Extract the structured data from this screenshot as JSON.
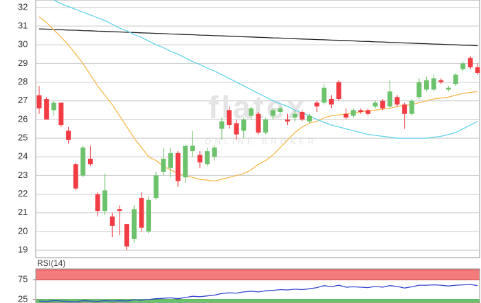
{
  "chart_data": [
    {
      "type": "candlestick",
      "watermark": "flatex",
      "watermark_subtitle": "ONLINE BROKER",
      "ylim": [
        18.6,
        32.4
      ],
      "yticks": [
        19,
        20,
        21,
        22,
        23,
        24,
        25,
        26,
        27,
        28,
        29,
        30,
        31,
        32
      ],
      "grid": true,
      "up_color": "#6cc36c",
      "down_color": "#f23c44",
      "open": [
        27.3,
        27.1,
        26.5,
        26.9,
        25.4,
        23.6,
        23.0,
        23.9,
        22.0,
        21.1,
        20.8,
        21.2,
        20.4,
        19.6,
        21.8,
        20.0,
        21.8,
        23.2,
        23.4,
        24.2,
        22.9,
        24.3,
        24.1,
        23.6,
        24.0,
        25.5,
        26.5,
        25.8,
        25.4,
        26.2,
        26.3,
        25.3,
        26.2,
        26.4,
        26.0,
        26.1,
        26.4,
        25.9,
        26.9,
        26.9,
        27.1,
        28.0,
        26.3,
        26.2,
        26.5,
        26.5,
        26.7,
        27.0,
        26.7,
        27.2,
        26.8,
        26.3,
        27.2,
        27.6,
        27.6,
        28.1,
        27.6,
        27.9,
        28.7,
        29.3,
        28.8
      ],
      "high": [
        27.8,
        27.2,
        27.0,
        26.9,
        25.6,
        23.7,
        24.6,
        24.6,
        22.1,
        23.1,
        21.0,
        21.4,
        20.4,
        21.4,
        22.1,
        21.9,
        23.2,
        24.5,
        24.5,
        24.3,
        24.6,
        25.4,
        24.3,
        24.5,
        24.6,
        26.1,
        26.7,
        26.0,
        26.1,
        26.7,
        26.4,
        26.1,
        26.6,
        26.7,
        26.3,
        26.5,
        26.5,
        26.3,
        27.0,
        27.9,
        27.3,
        28.1,
        26.6,
        26.6,
        26.6,
        26.6,
        27.0,
        27.1,
        28.1,
        27.3,
        26.9,
        27.1,
        28.2,
        28.3,
        28.4,
        28.2,
        27.8,
        28.5,
        29.1,
        29.4,
        29.0
      ],
      "low": [
        26.3,
        26.0,
        26.2,
        25.6,
        24.7,
        22.2,
        22.9,
        23.5,
        20.8,
        20.9,
        19.7,
        19.8,
        19.0,
        19.4,
        20.0,
        19.9,
        21.7,
        23.0,
        22.9,
        22.4,
        22.6,
        24.0,
        23.4,
        23.5,
        23.8,
        24.9,
        25.5,
        24.9,
        25.0,
        26.0,
        25.2,
        25.2,
        26.0,
        26.3,
        25.7,
        25.9,
        25.9,
        25.8,
        26.4,
        26.8,
        26.6,
        27.0,
        26.0,
        26.1,
        26.3,
        26.2,
        26.6,
        26.5,
        26.6,
        26.7,
        25.5,
        26.2,
        27.1,
        27.5,
        27.5,
        27.9,
        27.5,
        27.8,
        28.6,
        28.7,
        28.4
      ],
      "close": [
        26.6,
        26.0,
        26.9,
        25.7,
        24.9,
        22.3,
        24.5,
        23.6,
        21.1,
        22.2,
        20.3,
        21.1,
        19.2,
        21.2,
        20.2,
        21.7,
        23.0,
        23.9,
        24.2,
        22.7,
        24.6,
        24.6,
        23.7,
        24.3,
        24.5,
        25.9,
        25.7,
        25.2,
        26.0,
        26.6,
        25.3,
        26.0,
        26.5,
        26.6,
        25.9,
        26.3,
        26.0,
        26.2,
        26.7,
        27.7,
        26.8,
        27.1,
        26.1,
        26.5,
        26.4,
        26.3,
        26.9,
        26.6,
        27.5,
        26.8,
        26.3,
        27.0,
        28.0,
        28.1,
        28.2,
        28.0,
        27.7,
        28.4,
        29.0,
        28.8,
        28.5
      ],
      "series": [
        {
          "color": "#222222",
          "values": [
            30.85,
            30.84,
            30.82,
            30.81,
            30.79,
            30.78,
            30.76,
            30.75,
            30.73,
            30.72,
            30.7,
            30.69,
            30.67,
            30.66,
            30.64,
            30.63,
            30.61,
            30.6,
            30.58,
            30.57,
            30.55,
            30.54,
            30.52,
            30.51,
            30.49,
            30.48,
            30.46,
            30.45,
            30.43,
            30.42,
            30.4,
            30.39,
            30.37,
            30.36,
            30.34,
            30.33,
            30.31,
            30.3,
            30.28,
            30.27,
            30.25,
            30.24,
            30.22,
            30.21,
            30.19,
            30.18,
            30.16,
            30.15,
            30.13,
            30.12,
            30.1,
            30.09,
            30.07,
            30.06,
            30.04,
            30.03,
            30.01,
            30.0,
            29.98,
            29.97,
            29.95
          ]
        },
        {
          "color": "#f6b84a",
          "values": [
            31.5,
            31.2,
            30.8,
            30.4,
            30.0,
            29.5,
            29.0,
            28.4,
            27.8,
            27.3,
            26.8,
            26.2,
            25.6,
            25.0,
            24.5,
            24.0,
            23.8,
            23.5,
            23.3,
            23.1,
            23.0,
            22.9,
            22.8,
            22.75,
            22.7,
            22.8,
            22.9,
            23.0,
            23.1,
            23.3,
            23.6,
            23.8,
            24.1,
            24.5,
            24.9,
            25.3,
            25.6,
            25.8,
            25.9,
            26.1,
            26.2,
            26.25,
            26.3,
            26.35,
            26.4,
            26.45,
            26.5,
            26.55,
            26.6,
            26.7,
            26.75,
            26.8,
            26.9,
            27.0,
            27.1,
            27.15,
            27.2,
            27.3,
            27.4,
            27.45,
            27.5
          ]
        },
        {
          "color": "#5fd3ea",
          "values": [
            null,
            null,
            32.4,
            32.2,
            32.05,
            31.9,
            31.75,
            31.6,
            31.45,
            31.3,
            31.1,
            30.9,
            30.75,
            30.55,
            30.4,
            30.2,
            30.0,
            29.85,
            29.65,
            29.5,
            29.3,
            29.1,
            28.95,
            28.75,
            28.6,
            28.4,
            28.2,
            28.0,
            27.8,
            27.6,
            27.4,
            27.2,
            27.0,
            26.85,
            26.7,
            26.5,
            26.35,
            26.2,
            26.0,
            25.85,
            25.7,
            25.6,
            25.5,
            25.4,
            25.3,
            25.2,
            25.15,
            25.1,
            25.05,
            25.0,
            25.0,
            25.0,
            25.0,
            25.0,
            25.05,
            25.1,
            25.2,
            25.3,
            25.5,
            25.7,
            25.9
          ]
        }
      ]
    },
    {
      "type": "line",
      "title": "RSI(14)",
      "ylim": [
        16,
        103
      ],
      "yticks": [
        25,
        75
      ],
      "overbought_zone": [
        75,
        100
      ],
      "oversold_zone": [
        0,
        25
      ],
      "overbought_color": "#f47c7c",
      "oversold_color": "#6cc46c",
      "series": [
        {
          "color": "#3344cc",
          "values": [
            21,
            20,
            22,
            21,
            20,
            19,
            22,
            21,
            20,
            22,
            21,
            22,
            21,
            24,
            23,
            25,
            27,
            28,
            29,
            27,
            30,
            33,
            32,
            34,
            36,
            40,
            42,
            41,
            44,
            46,
            44,
            47,
            48,
            50,
            49,
            51,
            50,
            52,
            55,
            60,
            57,
            61,
            56,
            57,
            56,
            55,
            58,
            56,
            60,
            58,
            54,
            57,
            61,
            61,
            62,
            61,
            59,
            61,
            62,
            63,
            60
          ]
        }
      ]
    }
  ]
}
